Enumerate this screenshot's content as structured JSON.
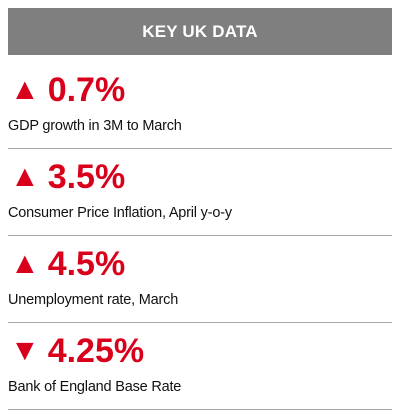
{
  "header": {
    "title": "KEY UK DATA"
  },
  "stats": [
    {
      "arrow": "▲",
      "direction": "up",
      "value": "0.7%",
      "label": "GDP growth in 3M to March"
    },
    {
      "arrow": "▲",
      "direction": "up",
      "value": "3.5%",
      "label": "Consumer Price Inflation, April y-o-y"
    },
    {
      "arrow": "▲",
      "direction": "up",
      "value": "4.5%",
      "label": "Unemployment rate, March"
    },
    {
      "arrow": "▼",
      "direction": "down",
      "value": "4.25%",
      "label": "Bank of England Base Rate"
    }
  ],
  "colors": {
    "header_bg": "#7f7f7f",
    "accent_red": "#d9001b",
    "divider": "#a6a6a6"
  }
}
